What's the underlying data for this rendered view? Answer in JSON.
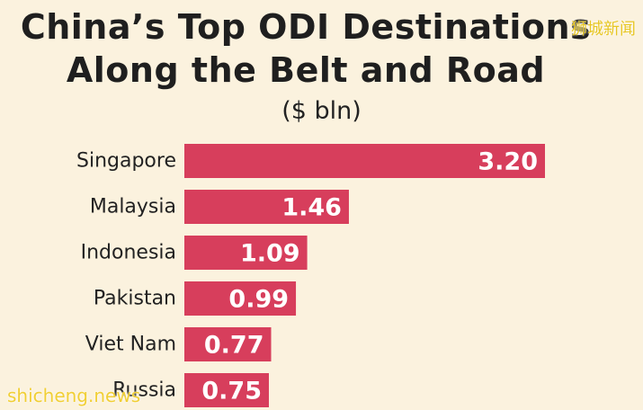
{
  "header": {
    "title_line1": "China’s Top ODI Destinations",
    "title_line2": "Along the Belt and Road",
    "subtitle": "($ bln)"
  },
  "watermarks": {
    "top_right": "狮城新闻",
    "bottom_left": "shicheng.news"
  },
  "colors": {
    "background": "#fbf2de",
    "bar": "#d73e5c"
  },
  "chart_data": {
    "type": "bar",
    "orientation": "horizontal",
    "title": "China’s Top ODI Destinations Along the Belt and Road",
    "subtitle": "($ bln)",
    "categories": [
      "Singapore",
      "Malaysia",
      "Indonesia",
      "Pakistan",
      "Viet Nam",
      "Russia"
    ],
    "values": [
      3.2,
      1.46,
      1.09,
      0.99,
      0.77,
      0.75
    ],
    "value_labels": [
      "3.20",
      "1.46",
      "1.09",
      "0.99",
      "0.77",
      "0.75"
    ],
    "xlabel": "",
    "ylabel": "",
    "xlim": [
      0,
      3.2
    ],
    "grid": false,
    "legend": "none"
  }
}
